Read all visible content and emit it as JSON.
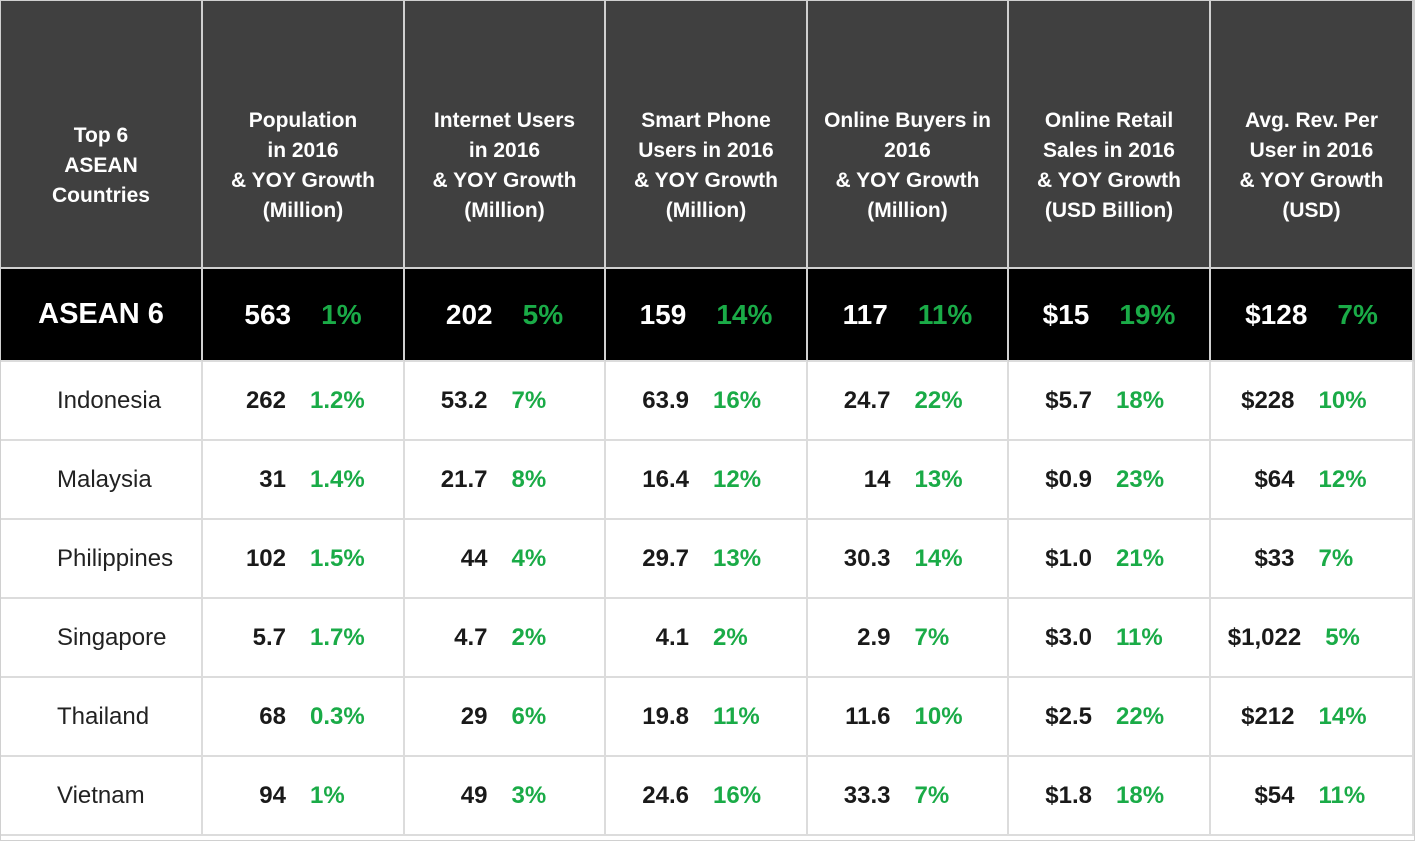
{
  "chart_data": {
    "type": "table",
    "columns": [
      "Top 6\nASEAN\nCountries",
      "Population\nin 2016\n& YOY Growth\n(Million)",
      "Internet Users\nin 2016\n& YOY Growth\n(Million)",
      "Smart Phone\nUsers in 2016\n& YOY Growth\n(Million)",
      "Online Buyers in\n2016\n& YOY Growth\n(Million)",
      "Online Retail\nSales in 2016\n& YOY Growth\n(USD Billion)",
      "Avg. Rev. Per\nUser in 2016\n& YOY Growth\n(USD)"
    ],
    "total": {
      "label": "ASEAN 6",
      "cells": [
        {
          "v": "563",
          "g": "1%"
        },
        {
          "v": "202",
          "g": "5%"
        },
        {
          "v": "159",
          "g": "14%"
        },
        {
          "v": "117",
          "g": "11%"
        },
        {
          "v": "$15",
          "g": "19%"
        },
        {
          "v": "$128",
          "g": "7%"
        }
      ]
    },
    "rows": [
      {
        "country": "Indonesia",
        "cells": [
          {
            "v": "262",
            "g": "1.2%"
          },
          {
            "v": "53.2",
            "g": "7%"
          },
          {
            "v": "63.9",
            "g": "16%"
          },
          {
            "v": "24.7",
            "g": "22%"
          },
          {
            "v": "$5.7",
            "g": "18%"
          },
          {
            "v": "$228",
            "g": "10%"
          }
        ]
      },
      {
        "country": "Malaysia",
        "cells": [
          {
            "v": "31",
            "g": "1.4%"
          },
          {
            "v": "21.7",
            "g": "8%"
          },
          {
            "v": "16.4",
            "g": "12%"
          },
          {
            "v": "14",
            "g": "13%"
          },
          {
            "v": "$0.9",
            "g": "23%"
          },
          {
            "v": "$64",
            "g": "12%"
          }
        ]
      },
      {
        "country": "Philippines",
        "cells": [
          {
            "v": "102",
            "g": "1.5%"
          },
          {
            "v": "44",
            "g": "4%"
          },
          {
            "v": "29.7",
            "g": "13%"
          },
          {
            "v": "30.3",
            "g": "14%"
          },
          {
            "v": "$1.0",
            "g": "21%"
          },
          {
            "v": "$33",
            "g": "7%"
          }
        ]
      },
      {
        "country": "Singapore",
        "cells": [
          {
            "v": "5.7",
            "g": "1.7%"
          },
          {
            "v": "4.7",
            "g": "2%"
          },
          {
            "v": "4.1",
            "g": "2%"
          },
          {
            "v": "2.9",
            "g": "7%"
          },
          {
            "v": "$3.0",
            "g": "11%"
          },
          {
            "v": "$1,022",
            "g": "5%"
          }
        ]
      },
      {
        "country": "Thailand",
        "cells": [
          {
            "v": "68",
            "g": "0.3%"
          },
          {
            "v": "29",
            "g": "6%"
          },
          {
            "v": "19.8",
            "g": "11%"
          },
          {
            "v": "11.6",
            "g": "10%"
          },
          {
            "v": "$2.5",
            "g": "22%"
          },
          {
            "v": "$212",
            "g": "14%"
          }
        ]
      },
      {
        "country": "Vietnam",
        "cells": [
          {
            "v": "94",
            "g": "1%"
          },
          {
            "v": "49",
            "g": "3%"
          },
          {
            "v": "24.6",
            "g": "16%"
          },
          {
            "v": "33.3",
            "g": "7%"
          },
          {
            "v": "$1.8",
            "g": "18%"
          },
          {
            "v": "$54",
            "g": "11%"
          }
        ]
      }
    ],
    "colors": {
      "header_bg": "#404040",
      "total_bg": "#000000",
      "growth": "#1aab47",
      "value": "#1a1a1a"
    }
  }
}
